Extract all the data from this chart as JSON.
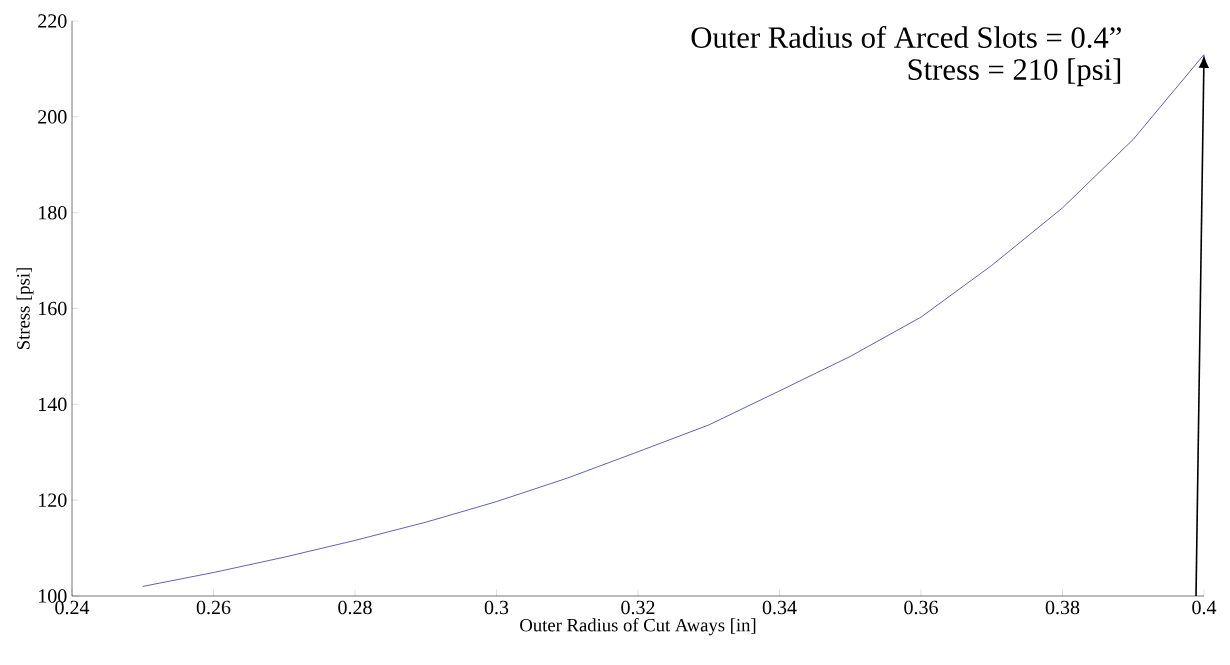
{
  "chart_data": {
    "type": "line",
    "xlabel": "Outer Radius of Cut Aways [in]",
    "ylabel": "Stress [psi]",
    "x": [
      0.25,
      0.26,
      0.27,
      0.28,
      0.29,
      0.3,
      0.31,
      0.32,
      0.33,
      0.34,
      0.35,
      0.36,
      0.37,
      0.38,
      0.39,
      0.4
    ],
    "series": [
      {
        "color": "#3a3aa0",
        "values": [
          102,
          104.9,
          108.1,
          111.6,
          115.4,
          119.7,
          124.6,
          130.1,
          135.7,
          142.8,
          150,
          158.2,
          169,
          181,
          195.3,
          213
        ]
      }
    ],
    "xlim": [
      0.24,
      0.4
    ],
    "ylim": [
      100,
      220
    ],
    "xticks": [
      0.24,
      0.26,
      0.28,
      0.3,
      0.32,
      0.34,
      0.36,
      0.38,
      0.4
    ],
    "yticks": [
      100,
      120,
      140,
      160,
      180,
      200,
      220
    ],
    "grid": false,
    "marker": "none",
    "line_style": "solid",
    "annotations": [
      "Outer Radius of Arced Slots = 0.4”",
      "Stress = 210 [psi]"
    ]
  }
}
